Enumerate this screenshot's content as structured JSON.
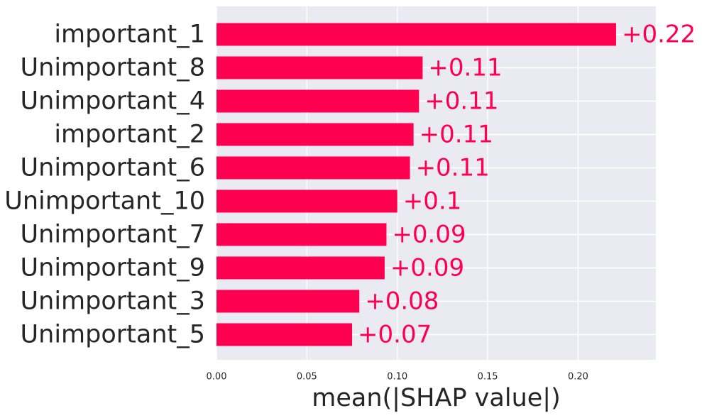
{
  "chart_data": {
    "type": "bar",
    "orientation": "horizontal",
    "categories": [
      "important_1",
      "Unimportant_8",
      "Unimportant_4",
      "important_2",
      "Unimportant_6",
      "Unimportant_10",
      "Unimportant_7",
      "Unimportant_9",
      "Unimportant_3",
      "Unimportant_5"
    ],
    "values": [
      0.221,
      0.114,
      0.112,
      0.109,
      0.107,
      0.1,
      0.094,
      0.093,
      0.079,
      0.075
    ],
    "value_labels": [
      "+0.22",
      "+0.11",
      "+0.11",
      "+0.11",
      "+0.11",
      "+0.1",
      "+0.09",
      "+0.09",
      "+0.08",
      "+0.07"
    ],
    "x_ticks": [
      0.0,
      0.05,
      0.1,
      0.15,
      0.2
    ],
    "x_tick_labels": [
      "0.00",
      "0.05",
      "0.10",
      "0.15",
      "0.20"
    ],
    "xlim": [
      0.0,
      0.243
    ],
    "xlabel": "mean(|SHAP value|)",
    "grid": true,
    "colors": {
      "bar": "#ff0051",
      "value_label": "#ff0051",
      "plot_background": "#eaeaf2",
      "grid": "#ffffff",
      "text": "#262626"
    }
  }
}
